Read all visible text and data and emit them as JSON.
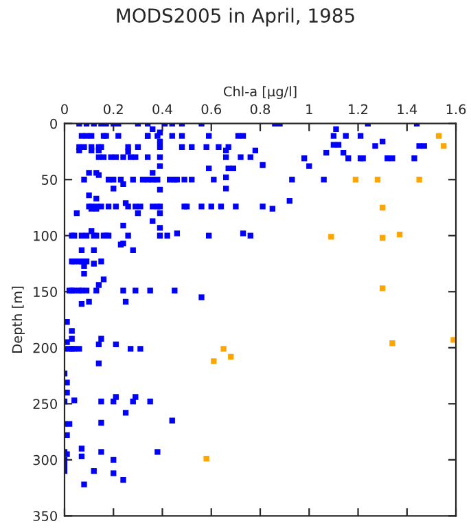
{
  "chart_data": {
    "type": "scatter",
    "title": "MODS2005 in April, 1985",
    "xlabel": "Chl-a [µg/l]",
    "ylabel": "Depth [m]",
    "xlim": [
      0,
      1.6
    ],
    "xticks": [
      0,
      0.2,
      0.4,
      0.6,
      0.8,
      1,
      1.2,
      1.4,
      1.6
    ],
    "ylim": [
      350,
      0
    ],
    "yticks": [
      0,
      50,
      100,
      150,
      200,
      250,
      300,
      350
    ],
    "grid": false,
    "legend": false,
    "marker": "square",
    "series": [
      {
        "color": "#0000ff",
        "x": [
          0.06,
          0.09,
          0.12,
          0.15,
          0.17,
          0.2,
          0.22,
          0.3,
          0.34,
          0.41,
          0.44,
          0.48,
          0.56,
          0.86,
          0.88,
          1.24,
          1.44,
          0.36,
          0.39,
          0.07,
          0.09,
          0.11,
          0.16,
          0.17,
          0.22,
          0.34,
          0.34,
          0.38,
          0.44,
          0.48,
          0.59,
          0.71,
          0.73,
          0.39,
          0.06,
          0.08,
          0.11,
          0.14,
          0.15,
          0.26,
          0.3,
          0.39,
          0.48,
          0.52,
          0.58,
          0.63,
          0.67,
          0.06,
          0.11,
          0.14,
          0.66,
          0.78,
          0.26,
          0.14,
          0.16,
          0.19,
          0.21,
          0.24,
          0.27,
          0.29,
          0.34,
          0.39,
          0.66,
          0.72,
          0.76,
          0.39,
          0.59,
          0.67,
          0.69,
          0.1,
          0.13,
          0.36,
          0.14,
          0.66,
          0.08,
          0.18,
          0.2,
          0.23,
          0.28,
          0.32,
          0.34,
          0.36,
          0.38,
          0.43,
          0.45,
          0.46,
          0.49,
          0.52,
          0.61,
          0.24,
          0.2,
          0.66,
          0.39,
          0.1,
          0.13,
          0.25,
          0.1,
          0.11,
          0.13,
          0.15,
          0.18,
          0.21,
          0.26,
          0.29,
          0.31,
          0.36,
          0.38,
          0.39,
          0.49,
          0.5,
          0.56,
          0.6,
          0.64,
          0.7,
          0.11,
          0.13,
          0.05,
          0.3,
          0.39,
          0.36,
          0.24,
          0.39,
          0.11,
          0.46,
          0.73,
          0.03,
          0.04,
          0.07,
          0.09,
          0.12,
          0.13,
          0.16,
          0.17,
          0.18,
          0.26,
          0.39,
          0.42,
          0.59,
          0.76,
          0.24,
          1.11,
          1.1,
          1.15,
          1.21,
          1.3,
          1.1,
          1.12,
          1.27,
          1.45,
          1.47,
          1.07,
          1.14,
          0.98,
          1.16,
          1.21,
          1.22,
          1.32,
          1.34,
          1.43,
          0.81,
          1.0,
          0.93,
          1.06,
          0.81,
          0.85,
          0.92,
          0.23,
          0.07,
          0.12,
          0.28,
          0.03,
          0.04,
          0.06,
          0.07,
          0.09,
          0.15,
          0.12,
          0.08,
          0.08,
          0.16,
          0.14,
          0.02,
          0.03,
          0.04,
          0.06,
          0.07,
          0.09,
          0.13,
          0.24,
          0.29,
          0.35,
          0.45,
          0.56,
          0.25,
          0.1,
          0.07,
          0.01,
          0.03,
          0.15,
          0.03,
          0.01,
          0.21,
          0.14,
          0.0,
          0.02,
          0.03,
          0.04,
          0.06,
          0.27,
          0.31,
          0.14,
          0.0,
          0.01,
          0.01,
          0.21,
          0.29,
          0.04,
          0.0,
          0.15,
          0.2,
          0.28,
          0.35,
          0.25,
          0.44,
          0.0,
          0.02,
          0.15,
          0.01,
          0.07,
          0.0,
          0.15,
          0.38,
          0.01,
          0.07,
          0.0,
          0.2,
          0.0,
          0.0,
          0.12,
          0.2,
          0.08,
          0.24
        ],
        "values": [
          0,
          0,
          0,
          0,
          0,
          0,
          0,
          0,
          0,
          0,
          0,
          0,
          0,
          0,
          0,
          0,
          0,
          5,
          8,
          11,
          11,
          11,
          11,
          11,
          11,
          11,
          11,
          11,
          11,
          11,
          11,
          11,
          11,
          16,
          21,
          21,
          21,
          21,
          21,
          21,
          21,
          21,
          21,
          21,
          21,
          21,
          21,
          24,
          24,
          24,
          24,
          24,
          25,
          30,
          30,
          30,
          30,
          30,
          30,
          30,
          30,
          30,
          30,
          30,
          30,
          38,
          40,
          40,
          40,
          44,
          44,
          44,
          46,
          48,
          50,
          50,
          50,
          50,
          50,
          50,
          50,
          50,
          50,
          50,
          50,
          50,
          50,
          50,
          50,
          54,
          58,
          58,
          59,
          64,
          67,
          71,
          74,
          74,
          74,
          74,
          74,
          74,
          74,
          74,
          74,
          74,
          74,
          74,
          74,
          74,
          74,
          74,
          74,
          74,
          76,
          76,
          80,
          80,
          80,
          87,
          91,
          93,
          96,
          98,
          98,
          100,
          100,
          100,
          100,
          100,
          100,
          100,
          100,
          100,
          100,
          100,
          100,
          100,
          100,
          107,
          5,
          11,
          11,
          11,
          16,
          19,
          19,
          20,
          20,
          20,
          26,
          26,
          31,
          31,
          31,
          31,
          31,
          31,
          31,
          37,
          38,
          50,
          50,
          74,
          76,
          69,
          108,
          113,
          113,
          113,
          123,
          123,
          123,
          123,
          123,
          123,
          125,
          127,
          134,
          139,
          144,
          149,
          149,
          149,
          149,
          149,
          149,
          149,
          149,
          149,
          149,
          149,
          155,
          159,
          159,
          161,
          177,
          185,
          192,
          192,
          195,
          197,
          197,
          201,
          201,
          201,
          201,
          201,
          201,
          201,
          214,
          223,
          231,
          240,
          244,
          244,
          247,
          248,
          248,
          248,
          248,
          248,
          258,
          265,
          268,
          268,
          267,
          278,
          290,
          293,
          293,
          293,
          295,
          297,
          300,
          300,
          305,
          310,
          310,
          312,
          322,
          318
        ]
      },
      {
        "color": "#ffa500",
        "x": [
          1.53,
          1.55,
          1.19,
          1.28,
          1.45,
          1.3,
          1.09,
          1.3,
          1.37,
          1.3,
          1.59,
          1.34,
          0.65,
          0.68,
          0.61,
          0.58
        ],
        "values": [
          11,
          20,
          50,
          50,
          50,
          75,
          101,
          102,
          99,
          147,
          193,
          196,
          201,
          208,
          212,
          299
        ]
      }
    ]
  }
}
